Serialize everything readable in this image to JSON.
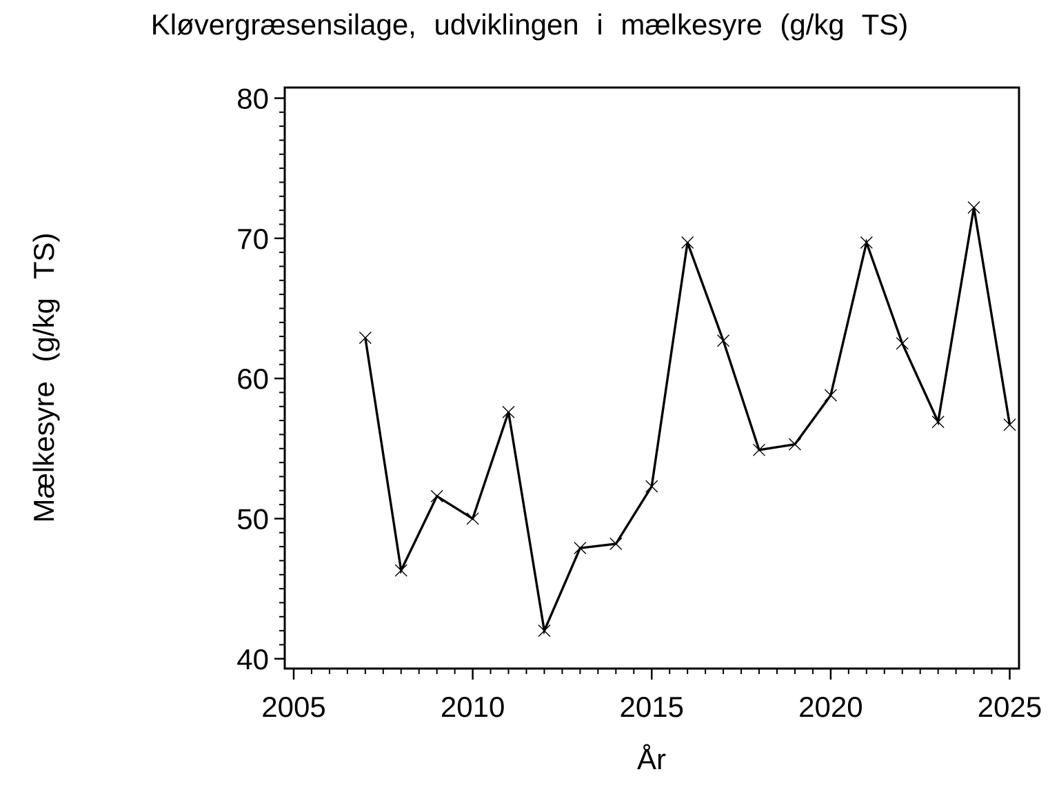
{
  "page": {
    "background_color": "#ffffff",
    "foreground_color": "#000000"
  },
  "chart_data": {
    "type": "line",
    "title": "Kløvergræsensilage, udviklingen i mælkesyre (g/kg TS)",
    "xlabel": "År",
    "ylabel": "Mælkesyre (g/kg TS)",
    "grid": false,
    "legend": false,
    "xlim": [
      2004.75,
      2025.26
    ],
    "ylim": [
      39.3,
      80.76
    ],
    "x_axis": {
      "major_ticks": [
        2005,
        2010,
        2015,
        2020,
        2025
      ],
      "major_tick_labels": [
        "2005",
        "2010",
        "2015",
        "2020",
        "2025"
      ],
      "minor_tick_step": 0.5,
      "minor_tick_range": [
        2005,
        2025
      ]
    },
    "y_axis": {
      "major_ticks": [
        40,
        50,
        60,
        70,
        80
      ],
      "major_tick_labels": [
        "40",
        "50",
        "60",
        "70",
        "80"
      ],
      "minor_tick_step": 1,
      "minor_tick_range": [
        40,
        80
      ]
    },
    "series": [
      {
        "name": "Mælkesyre",
        "marker": "x",
        "line_color": "#000000",
        "x": [
          2007,
          2008,
          2009,
          2010,
          2011,
          2012,
          2013,
          2014,
          2015,
          2016,
          2017,
          2018,
          2019,
          2020,
          2021,
          2022,
          2023,
          2024,
          2025
        ],
        "values": [
          62.9,
          46.3,
          51.6,
          50.0,
          57.6,
          42.0,
          47.9,
          48.2,
          52.3,
          69.7,
          62.7,
          54.9,
          55.3,
          58.8,
          69.7,
          62.5,
          56.9,
          72.2,
          56.7
        ]
      }
    ]
  }
}
